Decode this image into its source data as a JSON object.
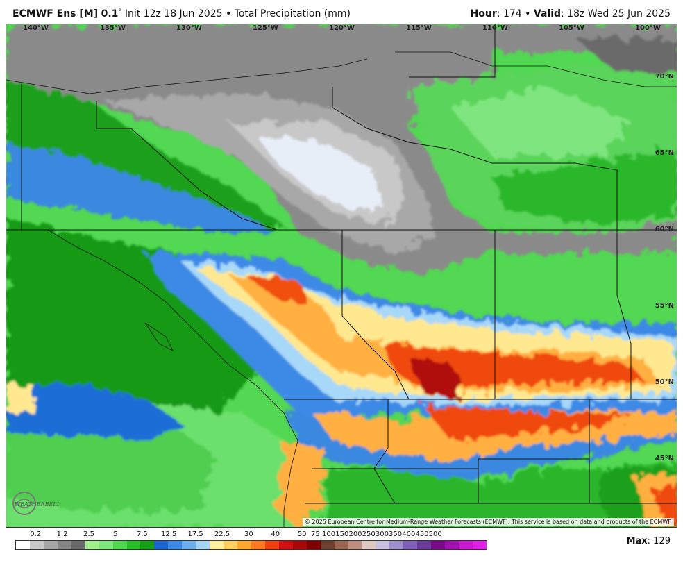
{
  "header": {
    "model": "ECMWF Ens [M]",
    "resolution": "0.1",
    "degree": "°",
    "init": "Init 12z 18 Jun 2025",
    "bullet": "•",
    "product": "Total Precipitation (mm)",
    "hour_label": "Hour",
    "hour_value": ": 174 •",
    "valid_label": "Valid",
    "valid_value": ": 18z Wed 25 Jun 2025"
  },
  "longitudes": [
    "140°W",
    "135°W",
    "130°W",
    "125°W",
    "120°W",
    "115°W",
    "110°W",
    "105°W",
    "100°W"
  ],
  "latitudes": [
    "70°N",
    "65°N",
    "60°N",
    "55°N",
    "50°N",
    "45°N"
  ],
  "copyright": "© 2025 European Centre for Medium-Range Weather Forecasts (ECMWF). This service is based on data and products of the ECMWF.",
  "logo_text": "WEATHERBELL",
  "legend": {
    "labels": [
      "0.2",
      "1.2",
      "2.5",
      "5",
      "7.5",
      "12.5",
      "17.5",
      "22.5",
      "30",
      "40",
      "50",
      "75",
      "100",
      "150",
      "200",
      "250",
      "300",
      "350",
      "400",
      "450",
      "500"
    ],
    "colors": [
      "#ffffff",
      "#c8c8c8",
      "#a6a6a6",
      "#868686",
      "#6a6a6a",
      "#a0f090",
      "#7ce87a",
      "#4fd94f",
      "#28c028",
      "#14a014",
      "#1a64d0",
      "#3b8ae8",
      "#6cb0f0",
      "#a4d4f8",
      "#fff0a0",
      "#ffd060",
      "#ffa830",
      "#ff7a20",
      "#f04010",
      "#d01010",
      "#a80808",
      "#800000",
      "#6e4030",
      "#9a6650",
      "#c09080",
      "#e0c8c0",
      "#c8c0e0",
      "#a090d0",
      "#8060b8",
      "#6a3a9a",
      "#7a0a8a",
      "#a010b0",
      "#c818d0",
      "#e020e8"
    ]
  },
  "max": {
    "label": "Max",
    "value": ": 129"
  }
}
